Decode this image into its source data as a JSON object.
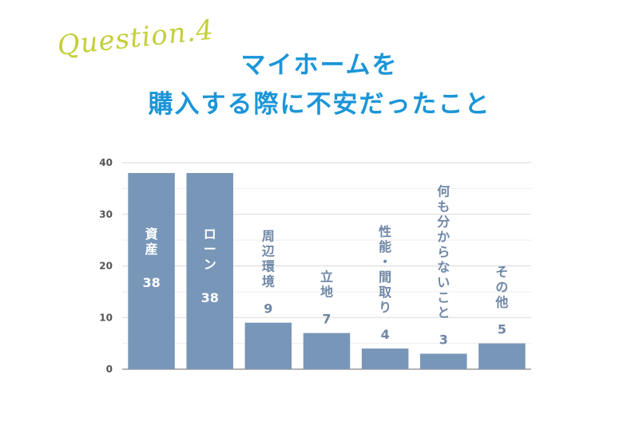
{
  "header": {
    "question_label": "Question.4",
    "title_line1": "マイホームを",
    "title_line2": "購入する際に不安だったこと"
  },
  "colors": {
    "bar": "#7896b8",
    "label_inside": "#ffffff",
    "label_outside": "#6f87a6",
    "grid": "#d9d9d9",
    "title": "#1b95d8",
    "question": "#c4cf3a"
  },
  "chart_data": {
    "type": "bar",
    "categories": [
      "資産",
      "ローン",
      "周辺環境",
      "立地",
      "性能・間取り",
      "何も分からないこと",
      "その他"
    ],
    "values": [
      38,
      38,
      9,
      7,
      4,
      3,
      5
    ],
    "ylim": [
      0,
      40
    ],
    "yticks": [
      0,
      10,
      20,
      30,
      40
    ],
    "grid": true,
    "title": "",
    "xlabel": "",
    "ylabel": ""
  }
}
